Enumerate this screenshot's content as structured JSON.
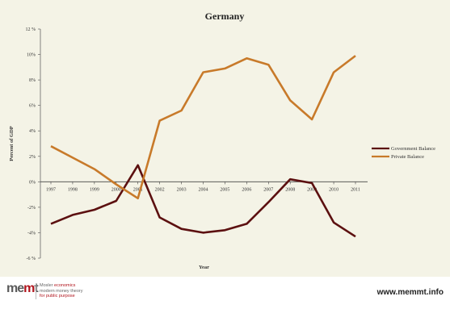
{
  "chart_data": {
    "type": "line",
    "title": "Germany",
    "xlabel": "Year",
    "ylabel": "Percent of GDP",
    "categories": [
      "1997",
      "1998",
      "1999",
      "2000",
      "2001",
      "2002",
      "2003",
      "2004",
      "2005",
      "2006",
      "2007",
      "2008",
      "2009",
      "2010",
      "2011"
    ],
    "ylim": [
      -6,
      12
    ],
    "yticks": [
      "-6 %",
      "-4%",
      "-2%",
      "0%",
      "2%",
      "4%",
      "6%",
      "8%",
      "10%",
      "12 %"
    ],
    "grid": false,
    "legend_position": "right",
    "series": [
      {
        "name": "Government Balance",
        "color": "#5c1010",
        "values": [
          -3.3,
          -2.6,
          -2.2,
          -1.5,
          1.3,
          -2.8,
          -3.7,
          -4.0,
          -3.8,
          -3.3,
          -1.6,
          0.2,
          -0.1,
          -3.2,
          -4.3
        ]
      },
      {
        "name": "Private Balance",
        "color": "#c87a2a",
        "values": [
          2.8,
          1.9,
          1.0,
          -0.2,
          -1.3,
          4.8,
          5.6,
          8.6,
          8.9,
          9.7,
          9.2,
          6.4,
          4.9,
          8.6,
          9.9
        ]
      }
    ]
  },
  "footer": {
    "logo_m1": "me",
    "logo_m2": "m",
    "logo_t": "t",
    "tagline_line1_a": "Mosler ",
    "tagline_line1_b": "economics",
    "tagline_line2": "modern money theory",
    "tagline_line3": "for public purpose",
    "site_url": "www.memmt.info"
  }
}
